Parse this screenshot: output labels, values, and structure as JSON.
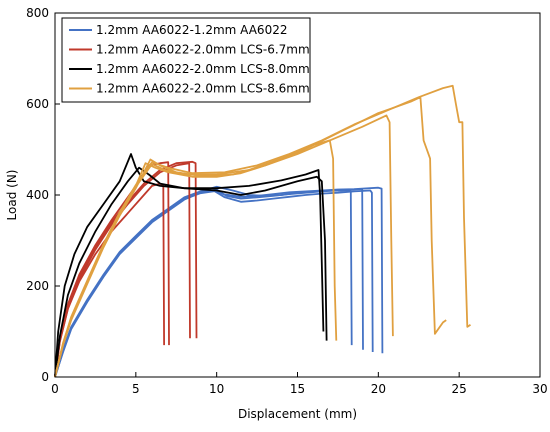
{
  "chart_data": {
    "type": "line",
    "title": "",
    "xlabel": "Displacement (mm)",
    "ylabel": "Load (N)",
    "xlim": [
      0,
      30
    ],
    "ylim": [
      0,
      800
    ],
    "xticks": [
      0,
      5,
      10,
      15,
      20,
      25,
      30
    ],
    "yticks": [
      0,
      200,
      400,
      600,
      800
    ],
    "grid": false,
    "legend": "top-left",
    "series": [
      {
        "name": "1.2mm AA6022-1.2mm AA6022",
        "color": "#4472C4",
        "curves": [
          [
            [
              0,
              0
            ],
            [
              0.5,
              60
            ],
            [
              1,
              110
            ],
            [
              2,
              170
            ],
            [
              3,
              225
            ],
            [
              4,
              275
            ],
            [
              5,
              310
            ],
            [
              6,
              345
            ],
            [
              7,
              370
            ],
            [
              8,
              395
            ],
            [
              9,
              408
            ],
            [
              10,
              418
            ],
            [
              11,
              410
            ],
            [
              12,
              400
            ],
            [
              13,
              398
            ],
            [
              14,
              400
            ],
            [
              15,
              405
            ],
            [
              16,
              408
            ],
            [
              17,
              410
            ],
            [
              18,
              410
            ],
            [
              18.3,
              408
            ],
            [
              18.35,
              70
            ]
          ],
          [
            [
              0,
              0
            ],
            [
              0.5,
              55
            ],
            [
              1,
              105
            ],
            [
              2,
              165
            ],
            [
              3,
              220
            ],
            [
              4,
              270
            ],
            [
              5,
              305
            ],
            [
              6,
              340
            ],
            [
              7,
              365
            ],
            [
              8,
              390
            ],
            [
              9,
              405
            ],
            [
              9.8,
              410
            ],
            [
              10.5,
              395
            ],
            [
              11.5,
              385
            ],
            [
              12.5,
              388
            ],
            [
              13.5,
              392
            ],
            [
              14.5,
              396
            ],
            [
              15.5,
              400
            ],
            [
              16.5,
              403
            ],
            [
              17.5,
              405
            ],
            [
              18.5,
              408
            ],
            [
              19.5,
              410
            ],
            [
              19.6,
              405
            ],
            [
              19.65,
              55
            ]
          ],
          [
            [
              0,
              0
            ],
            [
              0.5,
              58
            ],
            [
              1,
              108
            ],
            [
              2,
              168
            ],
            [
              3,
              222
            ],
            [
              4,
              272
            ],
            [
              5,
              308
            ],
            [
              6,
              342
            ],
            [
              7,
              368
            ],
            [
              8,
              392
            ],
            [
              9,
              406
            ],
            [
              10,
              412
            ],
            [
              10.6,
              398
            ],
            [
              11.5,
              392
            ],
            [
              12.5,
              395
            ],
            [
              13.5,
              398
            ],
            [
              14.5,
              402
            ],
            [
              15.5,
              405
            ],
            [
              16.5,
              408
            ],
            [
              17.5,
              410
            ],
            [
              18.5,
              412
            ],
            [
              19,
              413
            ],
            [
              19.05,
              60
            ]
          ],
          [
            [
              0,
              0
            ],
            [
              0.5,
              57
            ],
            [
              1,
              107
            ],
            [
              2,
              167
            ],
            [
              3,
              221
            ],
            [
              4,
              271
            ],
            [
              5,
              306
            ],
            [
              6,
              341
            ],
            [
              7,
              366
            ],
            [
              8,
              391
            ],
            [
              9,
              404
            ],
            [
              10,
              409
            ],
            [
              10.4,
              402
            ],
            [
              11.5,
              396
            ],
            [
              12.5,
              398
            ],
            [
              13.5,
              402
            ],
            [
              14.5,
              406
            ],
            [
              15.5,
              408
            ],
            [
              16.5,
              410
            ],
            [
              17.5,
              412
            ],
            [
              18.5,
              413
            ],
            [
              20,
              416
            ],
            [
              20.2,
              414
            ],
            [
              20.25,
              52
            ]
          ]
        ]
      },
      {
        "name": "1.2mm AA6022-2.0mm LCS-6.7mm",
        "color": "#C0392B",
        "curves": [
          [
            [
              0,
              0
            ],
            [
              0.3,
              80
            ],
            [
              0.8,
              150
            ],
            [
              1.5,
              210
            ],
            [
              2.5,
              270
            ],
            [
              3.5,
              320
            ],
            [
              4.5,
              360
            ],
            [
              5.5,
              400
            ],
            [
              6,
              420
            ],
            [
              6.5,
              425
            ],
            [
              6.7,
              420
            ],
            [
              6.75,
              70
            ]
          ],
          [
            [
              0,
              0
            ],
            [
              0.3,
              85
            ],
            [
              0.8,
              160
            ],
            [
              1.5,
              225
            ],
            [
              2.5,
              290
            ],
            [
              3.5,
              345
            ],
            [
              4.5,
              395
            ],
            [
              5.2,
              430
            ],
            [
              5.8,
              465
            ],
            [
              6.5,
              470
            ],
            [
              7,
              472
            ],
            [
              7.05,
              70
            ]
          ],
          [
            [
              0,
              0
            ],
            [
              0.3,
              78
            ],
            [
              0.8,
              150
            ],
            [
              1.5,
              215
            ],
            [
              2.5,
              280
            ],
            [
              3.5,
              335
            ],
            [
              4.5,
              380
            ],
            [
              5.5,
              420
            ],
            [
              6.5,
              450
            ],
            [
              7.5,
              465
            ],
            [
              8.3,
              470
            ],
            [
              8.35,
              85
            ]
          ],
          [
            [
              0,
              0
            ],
            [
              0.3,
              82
            ],
            [
              0.8,
              155
            ],
            [
              1.5,
              220
            ],
            [
              2.5,
              285
            ],
            [
              3.5,
              340
            ],
            [
              4.5,
              385
            ],
            [
              5.5,
              425
            ],
            [
              6.5,
              455
            ],
            [
              7.5,
              470
            ],
            [
              8.5,
              473
            ],
            [
              8.7,
              470
            ],
            [
              8.75,
              85
            ]
          ]
        ]
      },
      {
        "name": "1.2mm AA6022-2.0mm LCS-8.0mm",
        "color": "#000000",
        "curves": [
          [
            [
              0,
              0
            ],
            [
              0.2,
              100
            ],
            [
              0.6,
              200
            ],
            [
              1.2,
              270
            ],
            [
              2,
              330
            ],
            [
              3,
              380
            ],
            [
              4,
              430
            ],
            [
              4.7,
              490
            ],
            [
              5,
              460
            ],
            [
              5.5,
              430
            ],
            [
              6.5,
              420
            ],
            [
              8,
              415
            ],
            [
              10,
              410
            ],
            [
              11.5,
              400
            ],
            [
              13,
              410
            ],
            [
              14,
              420
            ],
            [
              15,
              430
            ],
            [
              16.2,
              440
            ],
            [
              16.5,
              430
            ],
            [
              16.7,
              300
            ],
            [
              16.8,
              80
            ]
          ],
          [
            [
              0,
              0
            ],
            [
              0.3,
              90
            ],
            [
              0.8,
              180
            ],
            [
              1.5,
              250
            ],
            [
              2.5,
              320
            ],
            [
              3.5,
              380
            ],
            [
              4.5,
              430
            ],
            [
              5.2,
              460
            ],
            [
              5.8,
              445
            ],
            [
              6.5,
              425
            ],
            [
              8,
              415
            ],
            [
              10,
              415
            ],
            [
              12,
              420
            ],
            [
              14,
              432
            ],
            [
              15.5,
              445
            ],
            [
              16.3,
              455
            ],
            [
              16.4,
              400
            ],
            [
              16.5,
              250
            ],
            [
              16.6,
              100
            ]
          ]
        ]
      },
      {
        "name": "1.2mm AA6022-2.0mm LCS-8.6mm",
        "color": "#E0A040",
        "curves": [
          [
            [
              0,
              0
            ],
            [
              0.5,
              75
            ],
            [
              1,
              130
            ],
            [
              2,
              210
            ],
            [
              3,
              290
            ],
            [
              4,
              360
            ],
            [
              5,
              420
            ],
            [
              5.6,
              470
            ],
            [
              6.2,
              460
            ],
            [
              7,
              450
            ],
            [
              8.5,
              440
            ],
            [
              10,
              440
            ],
            [
              11.5,
              448
            ],
            [
              13,
              465
            ],
            [
              14.5,
              485
            ],
            [
              16,
              510
            ],
            [
              17,
              520
            ],
            [
              17.2,
              480
            ],
            [
              17.3,
              200
            ],
            [
              17.4,
              80
            ]
          ],
          [
            [
              0,
              0
            ],
            [
              0.5,
              70
            ],
            [
              1,
              125
            ],
            [
              2,
              205
            ],
            [
              3,
              285
            ],
            [
              4,
              355
            ],
            [
              5,
              415
            ],
            [
              5.9,
              478
            ],
            [
              6.5,
              465
            ],
            [
              7.5,
              450
            ],
            [
              9,
              442
            ],
            [
              11,
              445
            ],
            [
              13,
              465
            ],
            [
              15,
              490
            ],
            [
              17,
              520
            ],
            [
              19,
              550
            ],
            [
              20.5,
              575
            ],
            [
              20.7,
              560
            ],
            [
              20.8,
              300
            ],
            [
              20.9,
              90
            ]
          ],
          [
            [
              0,
              0
            ],
            [
              0.5,
              72
            ],
            [
              1,
              128
            ],
            [
              2,
              208
            ],
            [
              3,
              288
            ],
            [
              4,
              358
            ],
            [
              5,
              418
            ],
            [
              6,
              468
            ],
            [
              6.8,
              455
            ],
            [
              8,
              445
            ],
            [
              10,
              445
            ],
            [
              12,
              455
            ],
            [
              14,
              480
            ],
            [
              16,
              510
            ],
            [
              18,
              545
            ],
            [
              20,
              580
            ],
            [
              22,
              605
            ],
            [
              22.6,
              615
            ],
            [
              22.8,
              520
            ],
            [
              23.2,
              480
            ],
            [
              23.3,
              300
            ],
            [
              23.5,
              95
            ],
            [
              24,
              120
            ],
            [
              24.2,
              125
            ]
          ],
          [
            [
              0,
              0
            ],
            [
              0.5,
              74
            ],
            [
              1,
              132
            ],
            [
              2,
              212
            ],
            [
              3,
              292
            ],
            [
              4,
              362
            ],
            [
              5,
              422
            ],
            [
              6,
              472
            ],
            [
              7,
              460
            ],
            [
              8.5,
              448
            ],
            [
              10.5,
              450
            ],
            [
              12.5,
              465
            ],
            [
              14.5,
              490
            ],
            [
              16.5,
              520
            ],
            [
              18.5,
              555
            ],
            [
              20.5,
              585
            ],
            [
              22.5,
              615
            ],
            [
              24,
              635
            ],
            [
              24.6,
              640
            ],
            [
              24.8,
              600
            ],
            [
              25,
              560
            ],
            [
              25.2,
              560
            ],
            [
              25.3,
              350
            ],
            [
              25.5,
              110
            ],
            [
              25.7,
              115
            ]
          ]
        ]
      }
    ]
  }
}
